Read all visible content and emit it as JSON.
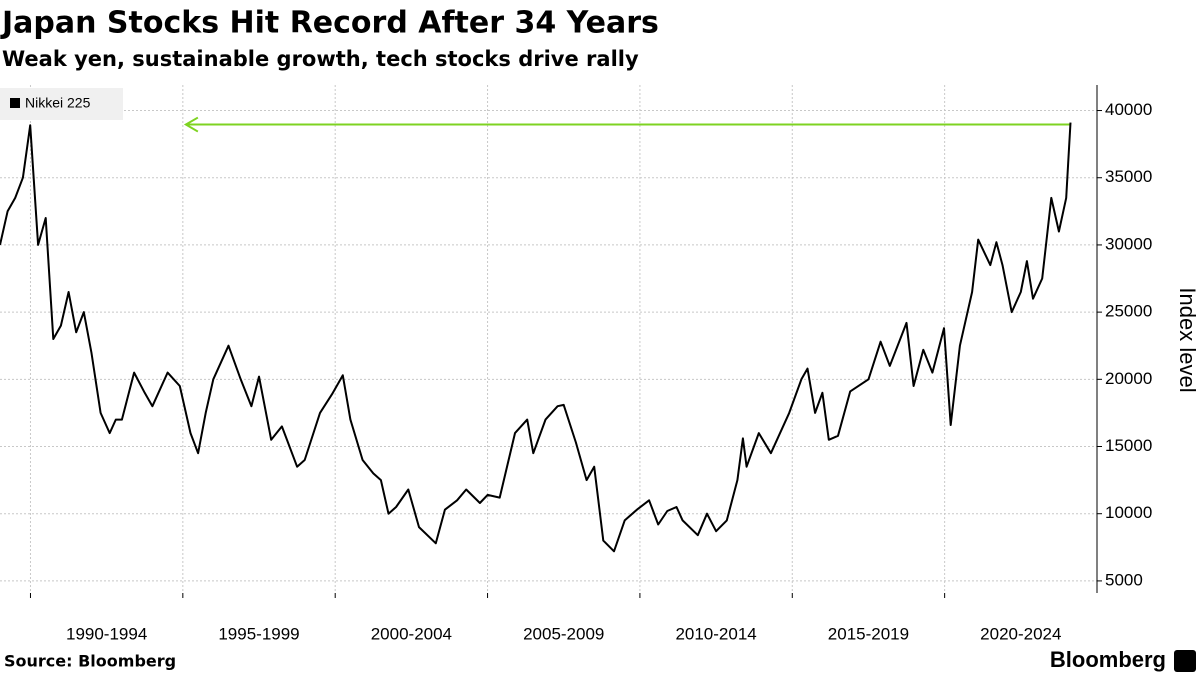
{
  "chart_data": {
    "type": "line",
    "title": "Japan Stocks Hit Record After 34 Years",
    "subtitle": "Weak yen, sustainable growth, tech stocks drive rally",
    "ylabel": "Index level",
    "source": "Source: Bloomberg",
    "brand": "Bloomberg",
    "legend": "top-left",
    "grid": true,
    "xlim": [
      1989,
      2025
    ],
    "xticks": [
      {
        "value": 1990,
        "label": "1990-1994"
      },
      {
        "value": 1995,
        "label": "1995-1999"
      },
      {
        "value": 2000,
        "label": "2000-2004"
      },
      {
        "value": 2005,
        "label": "2005-2009"
      },
      {
        "value": 2010,
        "label": "2010-2014"
      },
      {
        "value": 2015,
        "label": "2015-2019"
      },
      {
        "value": 2020,
        "label": "2020-2024"
      }
    ],
    "ylim": [
      4100,
      41900
    ],
    "yticks": [
      5000,
      10000,
      15000,
      20000,
      25000,
      30000,
      35000,
      40000
    ],
    "arrow": {
      "y": 38957,
      "x": [
        2024.13,
        1995.1
      ],
      "color": "#7ed321"
    },
    "x": [
      1989.0,
      1989.25,
      1989.5,
      1989.75,
      1989.99,
      1990.25,
      1990.5,
      1990.75,
      1991.0,
      1991.25,
      1991.5,
      1991.75,
      1992.0,
      1992.3,
      1992.6,
      1992.8,
      1993.0,
      1993.4,
      1993.75,
      1994.0,
      1994.5,
      1994.9,
      1995.25,
      1995.5,
      1995.75,
      1996.0,
      1996.5,
      1996.9,
      1997.25,
      1997.5,
      1997.9,
      1998.25,
      1998.75,
      1999.0,
      1999.5,
      1999.9,
      2000.25,
      2000.5,
      2000.9,
      2001.25,
      2001.5,
      2001.75,
      2002.0,
      2002.4,
      2002.75,
      2003.3,
      2003.6,
      2004.0,
      2004.3,
      2004.75,
      2005.0,
      2005.4,
      2005.9,
      2006.3,
      2006.5,
      2006.9,
      2007.3,
      2007.5,
      2007.9,
      2008.25,
      2008.5,
      2008.8,
      2009.15,
      2009.5,
      2009.9,
      2010.3,
      2010.6,
      2010.9,
      2011.2,
      2011.4,
      2011.9,
      2012.2,
      2012.5,
      2012.85,
      2013.2,
      2013.38,
      2013.5,
      2013.9,
      2014.3,
      2014.9,
      2015.3,
      2015.5,
      2015.75,
      2015.99,
      2016.2,
      2016.5,
      2016.9,
      2017.5,
      2017.9,
      2018.2,
      2018.75,
      2018.98,
      2019.3,
      2019.6,
      2019.98,
      2020.2,
      2020.5,
      2020.9,
      2021.1,
      2021.5,
      2021.7,
      2021.9,
      2022.2,
      2022.5,
      2022.7,
      2022.9,
      2023.2,
      2023.5,
      2023.75,
      2023.99,
      2024.05,
      2024.13
    ],
    "series": [
      {
        "name": "Nikkei 225",
        "color": "#000000",
        "values": [
          30000,
          32500,
          33500,
          35000,
          38900,
          30000,
          32000,
          23000,
          24000,
          26500,
          23500,
          25000,
          22000,
          17500,
          16000,
          17000,
          17000,
          20500,
          19000,
          18000,
          20500,
          19500,
          16000,
          14500,
          17500,
          20000,
          22500,
          20000,
          18000,
          20200,
          15500,
          16500,
          13500,
          14000,
          17500,
          18900,
          20300,
          17000,
          14000,
          13000,
          12500,
          10000,
          10500,
          11800,
          9000,
          7800,
          10300,
          11000,
          11800,
          10800,
          11400,
          11200,
          16000,
          17000,
          14500,
          17000,
          18000,
          18100,
          15300,
          12500,
          13500,
          8000,
          7200,
          9500,
          10300,
          11000,
          9200,
          10200,
          10500,
          9500,
          8400,
          10000,
          8700,
          9500,
          12500,
          15600,
          13500,
          16000,
          14500,
          17500,
          20000,
          20800,
          17500,
          19000,
          15500,
          15800,
          19100,
          20000,
          22800,
          21000,
          24200,
          19500,
          22200,
          20500,
          23800,
          16600,
          22500,
          26500,
          30400,
          28500,
          30200,
          28500,
          25000,
          26500,
          28800,
          26000,
          27500,
          33500,
          31000,
          33500,
          36000,
          39100
        ]
      }
    ]
  }
}
